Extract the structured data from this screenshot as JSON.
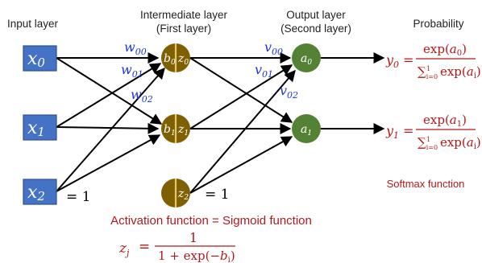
{
  "headers": {
    "input": "Input layer",
    "intermediate_line1": "Intermediate layer",
    "intermediate_line2": "(First layer)",
    "output_line1": "Output layer",
    "output_line2": "(Second layer)",
    "probability": "Probability"
  },
  "inputs": [
    {
      "symbol": "x",
      "sub": "0"
    },
    {
      "symbol": "x",
      "sub": "1"
    },
    {
      "symbol": "x",
      "sub": "2"
    }
  ],
  "bias_input_note": "= 1",
  "hidden_nodes": [
    {
      "b": "b",
      "b_sub": "0",
      "z": "z",
      "z_sub": "0"
    },
    {
      "b": "b",
      "b_sub": "1",
      "z": "z",
      "z_sub": "1"
    }
  ],
  "bias_hidden": {
    "z": "z",
    "z_sub": "2",
    "note": "= 1"
  },
  "output_nodes": [
    {
      "a": "a",
      "sub": "0"
    },
    {
      "a": "a",
      "sub": "1"
    }
  ],
  "weights_w": [
    {
      "sym": "w",
      "sub": "00"
    },
    {
      "sym": "w",
      "sub": "01"
    },
    {
      "sym": "w",
      "sub": "02"
    }
  ],
  "weights_v": [
    {
      "sym": "v",
      "sub": "00"
    },
    {
      "sym": "v",
      "sub": "01"
    },
    {
      "sym": "v",
      "sub": "02"
    }
  ],
  "outputs": [
    {
      "y": "y",
      "sub": "0",
      "eq": "=",
      "num_func": "exp(",
      "num_var": "a",
      "num_sub": "0",
      "num_close": ")",
      "den_sum": "∑",
      "den_from": "i=0",
      "den_to": "1",
      "den_func": " exp(",
      "den_var": "a",
      "den_sub": "i",
      "den_close": ")"
    },
    {
      "y": "y",
      "sub": "1",
      "eq": "=",
      "num_func": "exp(",
      "num_var": "a",
      "num_sub": "1",
      "num_close": ")",
      "den_sum": "∑",
      "den_from": "i=0",
      "den_to": "1",
      "den_func": " exp(",
      "den_var": "a",
      "den_sub": "i",
      "den_close": ")"
    }
  ],
  "softmax_label": "Softmax function",
  "activation_label": "Activation function = Sigmoid function",
  "sigmoid": {
    "lhs_var": "z",
    "lhs_sub": "j",
    "eq": "=",
    "num": "1",
    "den_pre": "1 + exp(−",
    "den_var": "b",
    "den_sub": "i",
    "den_close": ")"
  },
  "colors": {
    "input_box": "#4472c4",
    "input_box_border": "#2f528f",
    "hidden_node": "#7f6000",
    "hidden_divider": "#e7c46a",
    "output_node": "#548235",
    "weight_label": "#1f35d6",
    "formula": "#b5181a",
    "edge": "#000000"
  }
}
